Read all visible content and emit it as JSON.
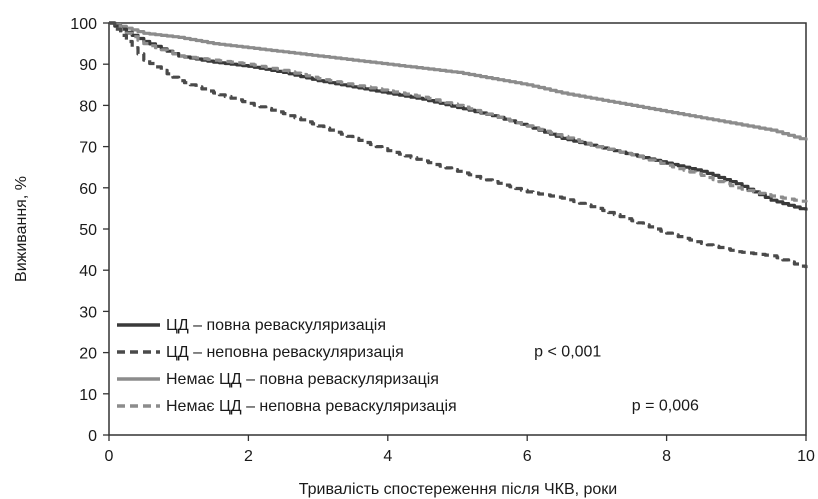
{
  "chart_data": {
    "type": "line",
    "title": "",
    "xlabel": "Тривалість спостереження після ЧКВ, роки",
    "ylabel": "Виживання, %",
    "xlim": [
      0,
      10
    ],
    "ylim": [
      0,
      100
    ],
    "x_ticks": [
      0,
      2,
      4,
      6,
      8,
      10
    ],
    "y_ticks": [
      0,
      10,
      20,
      30,
      40,
      50,
      60,
      70,
      80,
      90,
      100
    ],
    "grid": false,
    "legend_position": "bottom-left",
    "series": [
      {
        "name": "ЦД – повна реваскуляризація",
        "color": "#3a3a3a",
        "dash": "solid",
        "x": [
          0,
          0.5,
          1,
          1.5,
          2,
          2.5,
          3,
          3.5,
          4,
          4.5,
          5,
          5.5,
          6,
          6.5,
          7,
          7.5,
          8,
          8.5,
          9,
          9.5,
          10
        ],
        "y": [
          100,
          95.5,
          92,
          90.5,
          89.5,
          88,
          86,
          84.5,
          83,
          81.5,
          79.5,
          77.5,
          75,
          72,
          70,
          68,
          66,
          64,
          61,
          57,
          54.5
        ]
      },
      {
        "name": "ЦД – неповна реваскуляризація",
        "color": "#4a4a4a",
        "dash": "dashed",
        "x": [
          0,
          0.5,
          1,
          1.5,
          2,
          2.5,
          3,
          3.5,
          4,
          4.5,
          5,
          5.5,
          6,
          6.5,
          7,
          7.5,
          8,
          8.5,
          9,
          9.5,
          10
        ],
        "y": [
          100,
          91,
          86,
          83,
          80.5,
          78,
          75,
          72,
          69,
          66.5,
          64,
          61.5,
          59,
          57.5,
          55,
          52,
          49,
          46.5,
          44.5,
          43.5,
          40.5
        ]
      },
      {
        "name": "Немає ЦД – повна реваскуляризація",
        "color": "#8c8c8c",
        "dash": "solid",
        "x": [
          0,
          0.5,
          1,
          1.5,
          2,
          2.5,
          3,
          3.5,
          4,
          4.5,
          5,
          5.5,
          6,
          6.5,
          7,
          7.5,
          8,
          8.5,
          9,
          9.5,
          10
        ],
        "y": [
          100,
          97.5,
          96.5,
          95,
          94,
          93,
          92,
          91,
          90,
          89,
          88,
          86.5,
          85,
          83,
          81.5,
          80,
          78.5,
          77,
          75.5,
          74,
          71.5
        ]
      },
      {
        "name": "Немає ЦД – неповна реваскуляризація",
        "color": "#8c8c8c",
        "dash": "dashed",
        "x": [
          0,
          0.5,
          1,
          1.5,
          2,
          2.5,
          3,
          3.5,
          4,
          4.5,
          5,
          5.5,
          6,
          6.5,
          7,
          7.5,
          8,
          8.5,
          9,
          9.5,
          10
        ],
        "y": [
          100,
          95,
          92,
          91,
          90,
          88.5,
          86.5,
          85,
          83.5,
          82,
          80,
          77.5,
          75,
          72.5,
          70,
          68,
          65.5,
          63,
          60,
          58,
          56.5
        ]
      }
    ],
    "annotations": [
      {
        "text": "p < 0,001",
        "x": 6.1,
        "y": 19
      },
      {
        "text": "p = 0,006",
        "x": 7.5,
        "y": 6
      }
    ]
  }
}
